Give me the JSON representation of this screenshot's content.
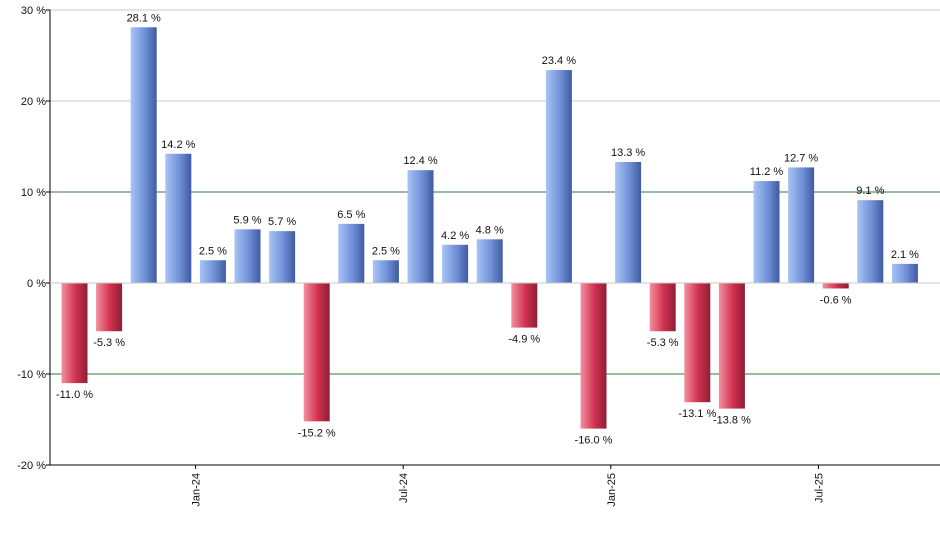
{
  "chart_data": {
    "type": "bar",
    "title": "",
    "xlabel": "",
    "ylabel": "",
    "ylim": [
      -20,
      30
    ],
    "yticks": [
      30,
      20,
      10,
      0,
      -10,
      -20
    ],
    "ytick_labels": [
      "30 %",
      "20 %",
      "10 %",
      "0 %",
      "-10 %",
      "-20 %"
    ],
    "xtick_labels": [
      {
        "label": "Jan-24",
        "after_index": 3
      },
      {
        "label": "Jul-24",
        "after_index": 9
      },
      {
        "label": "Jan-25",
        "after_index": 15
      },
      {
        "label": "Jul-25",
        "after_index": 21
      }
    ],
    "values": [
      -11.0,
      -5.3,
      28.1,
      14.2,
      2.5,
      5.9,
      5.7,
      -15.2,
      6.5,
      2.5,
      12.4,
      4.2,
      4.8,
      -4.9,
      23.4,
      -16.0,
      13.3,
      -5.3,
      -13.1,
      -13.8,
      11.2,
      12.7,
      -0.6,
      9.1,
      2.1
    ],
    "data_labels": [
      "-11.0 %",
      "-5.3 %",
      "28.1 %",
      "14.2 %",
      "2.5 %",
      "5.9 %",
      "5.7 %",
      "-15.2 %",
      "6.5 %",
      "2.5 %",
      "12.4 %",
      "4.2 %",
      "4.8 %",
      "-4.9 %",
      "23.4 %",
      "-16.0 %",
      "13.3 %",
      "-5.3 %",
      "-13.1 %",
      "-13.8 %",
      "11.2 %",
      "12.7 %",
      "-0.6 %",
      "9.1 %",
      "2.1 %"
    ],
    "grid": true,
    "colors": {
      "positive_light": "#a9c4f5",
      "positive_mid": "#6f90d8",
      "positive_dark": "#3f5aa0",
      "negative_light": "#f3909f",
      "negative_mid": "#d0304f",
      "negative_dark": "#8e1e36",
      "grid_gray": "#c8c8c8",
      "grid_green": "#2e7d32",
      "axis": "#000000"
    }
  }
}
